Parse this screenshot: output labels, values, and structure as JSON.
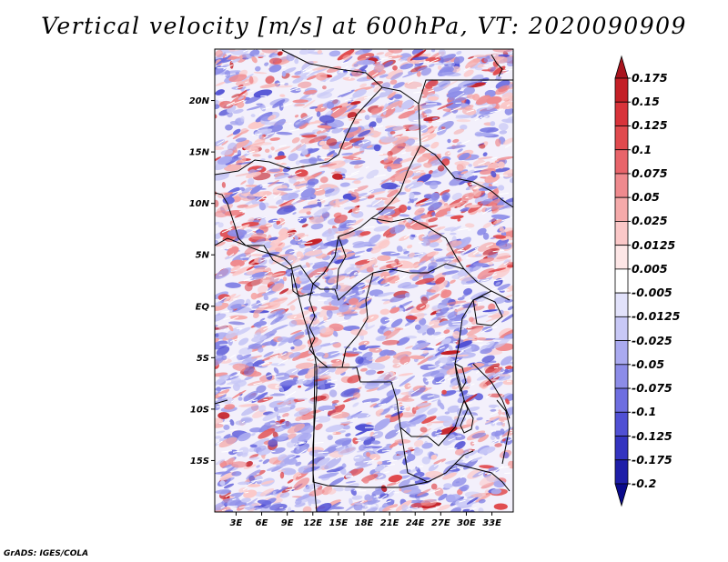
{
  "title": "Vertical velocity [m/s] at 600hPa, VT: 2020090909",
  "credit": "GrADS: IGES/COLA",
  "lat_labels": [
    "20N",
    "15N",
    "10N",
    "5N",
    "EQ",
    "5S",
    "10S",
    "15S"
  ],
  "lat_values": [
    20,
    15,
    10,
    5,
    0,
    -5,
    -10,
    -15
  ],
  "lon_labels": [
    "3E",
    "6E",
    "9E",
    "12E",
    "15E",
    "18E",
    "21E",
    "24E",
    "27E",
    "30E",
    "33E"
  ],
  "lon_values": [
    3,
    6,
    9,
    12,
    15,
    18,
    21,
    24,
    27,
    30,
    33
  ],
  "extent": {
    "lon_min": 0.5,
    "lon_max": 35.5,
    "lat_min": -20,
    "lat_max": 25
  },
  "colorbar": {
    "units": "m/s",
    "labels": [
      "0.175",
      "0.15",
      "0.125",
      "0.1",
      "0.075",
      "0.05",
      "0.025",
      "0.0125",
      "0.005",
      "-0.005",
      "-0.0125",
      "-0.025",
      "-0.05",
      "-0.075",
      "-0.1",
      "-0.125",
      "-0.175",
      "-0.2"
    ],
    "colors": [
      "#a8141e",
      "#c41f26",
      "#d8333a",
      "#e04a4e",
      "#e8646a",
      "#ef8a8e",
      "#f5aaaa",
      "#fbc8c8",
      "#fde6e6",
      "#ffffff",
      "#e2e2fb",
      "#c8c8f6",
      "#aaaaf0",
      "#8c8ce8",
      "#6e6ee0",
      "#5050d4",
      "#3434c0",
      "#1e1ea8",
      "#0a0a8c"
    ]
  },
  "field_colors": {
    "up": "#d03030",
    "down": "#4848d8",
    "neutral": "#ffffff"
  }
}
